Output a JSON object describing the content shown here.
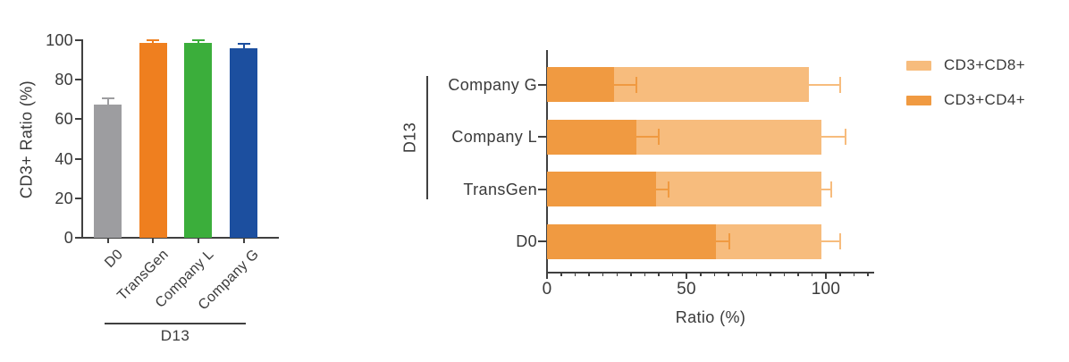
{
  "figure": {
    "background": "#ffffff",
    "text_color": "#3a3a3a",
    "axis_color": "#404040"
  },
  "chart_data": [
    {
      "type": "bar",
      "orientation": "vertical",
      "title": "",
      "xlabel": "",
      "ylabel": "CD3+ Ratio (%)",
      "ylim": [
        0,
        100
      ],
      "yticks": [
        0,
        20,
        40,
        60,
        80,
        100
      ],
      "grid": "off",
      "categories": [
        "D0",
        "TransGen",
        "Company L",
        "Company G"
      ],
      "values": [
        67.5,
        98.5,
        98.5,
        96
      ],
      "errors_upper": [
        3,
        1.5,
        1.5,
        2
      ],
      "bar_colors": [
        "#9d9da0",
        "#ef7f1f",
        "#3bae3b",
        "#1c4f9f"
      ],
      "group": {
        "label": "D13",
        "members": [
          "TransGen",
          "Company L",
          "Company G"
        ]
      }
    },
    {
      "type": "bar",
      "orientation": "horizontal",
      "stacked": true,
      "title": "",
      "xlabel": "Ratio (%)",
      "xlim": [
        0,
        117
      ],
      "xticks": [
        0,
        50,
        100
      ],
      "minor_tick_step": 5,
      "grid": "off",
      "legend_position": "right",
      "categories": [
        "Company G",
        "Company L",
        "TransGen",
        "D0"
      ],
      "series": [
        {
          "name": "CD3+CD4+",
          "color": "#f09a41",
          "values": [
            24,
            32,
            39,
            60.5
          ],
          "errors": [
            8,
            8,
            4.5,
            5
          ]
        },
        {
          "name": "CD3+CD8+",
          "color": "#f7bc7d",
          "values": [
            70,
            66.5,
            59.5,
            38
          ],
          "stack_total_errors": [
            11,
            8.5,
            3.5,
            6.5
          ]
        }
      ],
      "stack_totals": [
        94,
        98.5,
        98.5,
        98.5
      ],
      "group": {
        "label": "D13",
        "members": [
          "Company G",
          "Company L",
          "TransGen"
        ]
      }
    }
  ],
  "legend": {
    "items": [
      {
        "label": "CD3+CD8+",
        "color": "#f7bc7d"
      },
      {
        "label": "CD3+CD4+",
        "color": "#f09a41"
      }
    ]
  }
}
